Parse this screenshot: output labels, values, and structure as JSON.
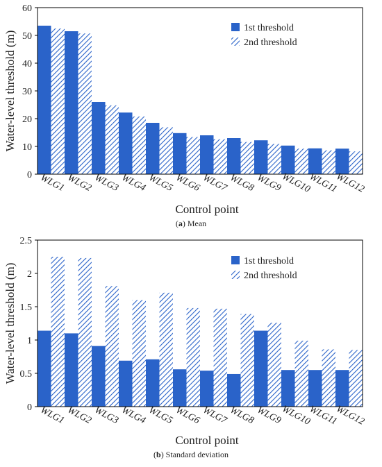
{
  "chart_data": [
    {
      "type": "bar",
      "categories": [
        "WLG1",
        "WLG2",
        "WLG3",
        "WLG4",
        "WLG5",
        "WLG6",
        "WLG7",
        "WLG8",
        "WLG9",
        "WLG10",
        "WLG11",
        "WLG12"
      ],
      "series": [
        {
          "name": "1st threshold",
          "values": [
            53.5,
            51.5,
            26.0,
            22.2,
            18.5,
            14.8,
            14.0,
            13.0,
            12.2,
            10.3,
            9.3,
            9.2
          ],
          "color": "#2a63c9",
          "pattern": "solid"
        },
        {
          "name": "2nd threshold",
          "values": [
            52.5,
            50.7,
            24.8,
            20.8,
            16.9,
            13.4,
            12.6,
            11.6,
            10.9,
            9.2,
            8.6,
            8.2
          ],
          "color": "#2a63c9",
          "pattern": "hatched"
        }
      ],
      "ylabel": "Water-level threshold (m)",
      "xlabel": "Control point",
      "ylim": [
        0,
        60
      ],
      "yticks": [
        0,
        10,
        20,
        30,
        40,
        50,
        60
      ],
      "legend": "top-right",
      "grid": false,
      "caption_letter": "a",
      "caption_text": " Mean"
    },
    {
      "type": "bar",
      "categories": [
        "WLG1",
        "WLG2",
        "WLG3",
        "WLG4",
        "WLG5",
        "WLG6",
        "WLG7",
        "WLG8",
        "WLG9",
        "WLG10",
        "WLG11",
        "WLG12"
      ],
      "series": [
        {
          "name": "1st threshold",
          "values": [
            1.14,
            1.1,
            0.91,
            0.69,
            0.71,
            0.56,
            0.54,
            0.49,
            1.14,
            0.55,
            0.55,
            0.55
          ],
          "color": "#2a63c9",
          "pattern": "solid"
        },
        {
          "name": "2nd threshold",
          "values": [
            2.25,
            2.23,
            1.81,
            1.6,
            1.71,
            1.48,
            1.47,
            1.39,
            1.26,
            0.99,
            0.86,
            0.85
          ],
          "color": "#2a63c9",
          "pattern": "hatched"
        }
      ],
      "ylabel": "Water-level threshold (m)",
      "xlabel": "Control point",
      "ylim": [
        0,
        2.5
      ],
      "yticks": [
        0,
        0.5,
        1,
        1.5,
        2,
        2.5
      ],
      "legend": "top-right",
      "grid": false,
      "caption_letter": "b",
      "caption_text": " Standard deviation"
    }
  ]
}
